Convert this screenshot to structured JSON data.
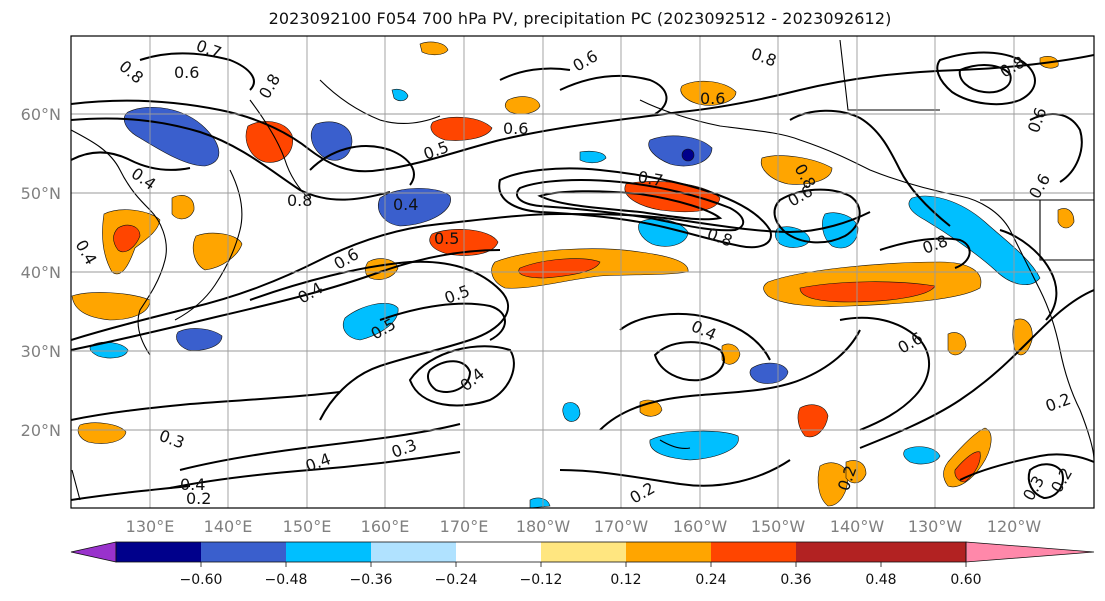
{
  "title": "2023092100 F054 700 hPa PV, precipitation PC (2023092512 - 2023092612)",
  "lat_labels": [
    "60°N",
    "50°N",
    "40°N",
    "30°N",
    "20°N"
  ],
  "lon_labels": [
    "130°E",
    "140°E",
    "150°E",
    "160°E",
    "170°E",
    "180°W",
    "170°W",
    "160°W",
    "150°W",
    "140°W",
    "130°W",
    "120°W"
  ],
  "colorbar": {
    "colors": [
      "#9932cc",
      "#00008b",
      "#3a5fcd",
      "#00bfff",
      "#b0e2ff",
      "#ffffff",
      "#ffe680",
      "#ffa500",
      "#ff4500",
      "#b22222",
      "#ff88aa"
    ],
    "tick_labels": [
      "−0.60",
      "−0.48",
      "−0.36",
      "−0.24",
      "−0.12",
      "0.12",
      "0.24",
      "0.36",
      "0.48",
      "0.60"
    ]
  },
  "contour_labels": [
    "0.7",
    "0.6",
    "0.8",
    "0.8",
    "0.6",
    "0.8",
    "0.6",
    "0.6",
    "0.8",
    "0.4",
    "0.5",
    "0.8",
    "0.4",
    "0.7",
    "0.6",
    "0.8",
    "0.8",
    "0.5",
    "0.6",
    "0.8",
    "0.4",
    "0.5",
    "0.5",
    "0.4",
    "0.6",
    "0.4",
    "0.4",
    "0.3",
    "0.3",
    "0.4",
    "0.2",
    "0.2",
    "0.2",
    "0.2",
    "0.3",
    "0.2",
    "0.6",
    "0.4",
    "0.6"
  ]
}
